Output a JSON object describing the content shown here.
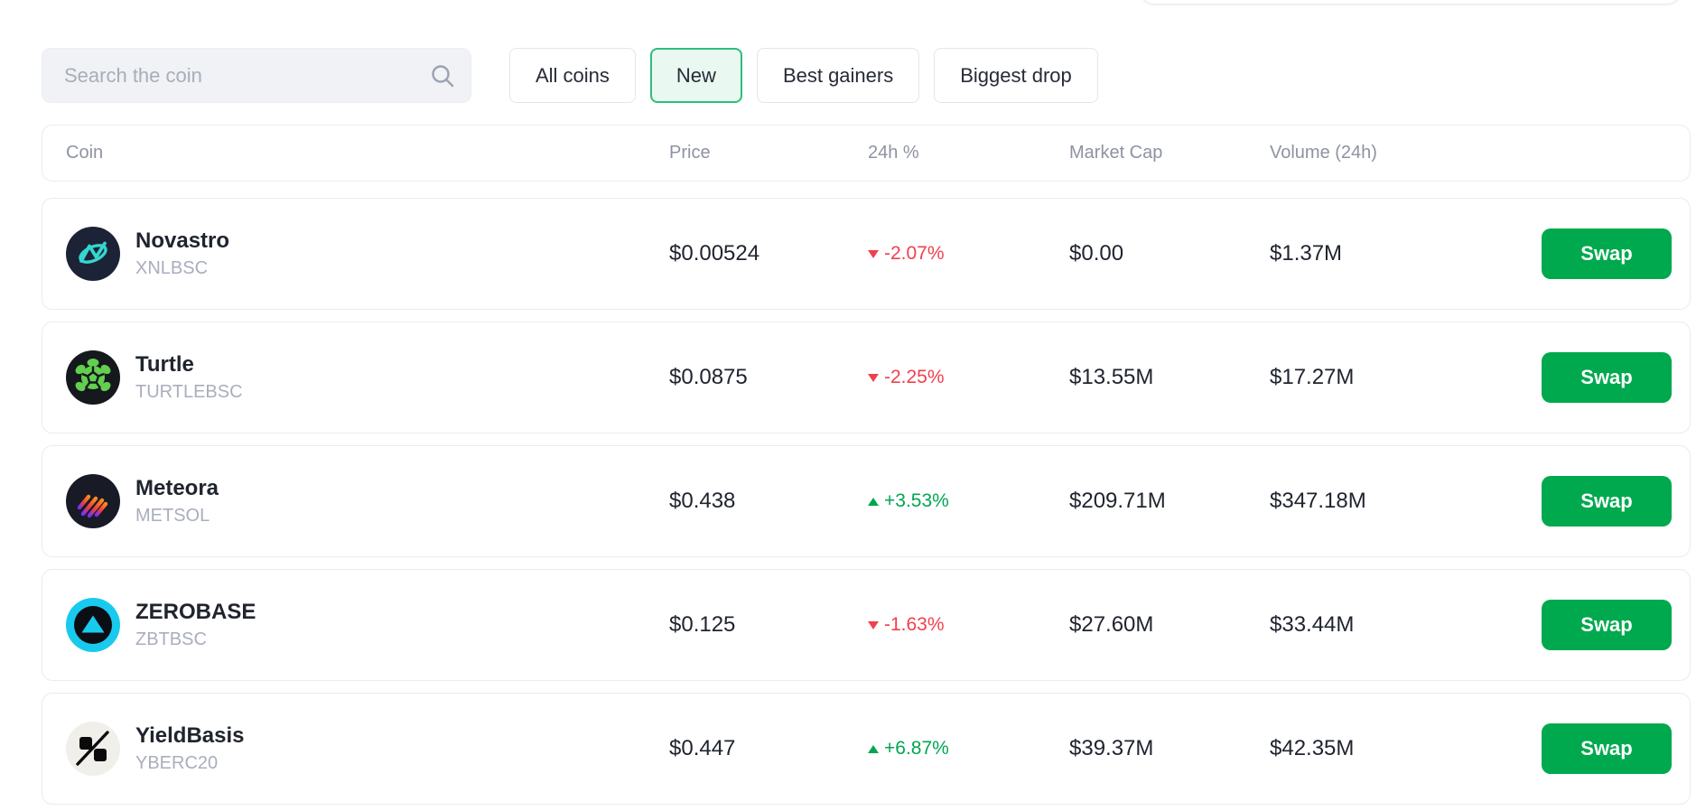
{
  "toolbar": {
    "search": {
      "placeholder": "Search the coin",
      "icon": "search-icon"
    },
    "filters": [
      {
        "label": "All coins",
        "active": false
      },
      {
        "label": "New",
        "active": true
      },
      {
        "label": "Best gainers",
        "active": false
      },
      {
        "label": "Biggest drop",
        "active": false
      }
    ]
  },
  "table": {
    "columns": [
      "Coin",
      "Price",
      "24h %",
      "Market Cap",
      "Volume (24h)"
    ],
    "swap_label": "Swap",
    "rows": [
      {
        "name": "Novastro",
        "symbol": "XNLBSC",
        "price": "$0.00524",
        "change": "-2.07%",
        "direction": "down",
        "market_cap": "$0.00",
        "volume": "$1.37M",
        "icon": "novastro"
      },
      {
        "name": "Turtle",
        "symbol": "TURTLEBSC",
        "price": "$0.0875",
        "change": "-2.25%",
        "direction": "down",
        "market_cap": "$13.55M",
        "volume": "$17.27M",
        "icon": "turtle"
      },
      {
        "name": "Meteora",
        "symbol": "METSOL",
        "price": "$0.438",
        "change": "+3.53%",
        "direction": "up",
        "market_cap": "$209.71M",
        "volume": "$347.18M",
        "icon": "meteora"
      },
      {
        "name": "ZEROBASE",
        "symbol": "ZBTBSC",
        "price": "$0.125",
        "change": "-1.63%",
        "direction": "down",
        "market_cap": "$27.60M",
        "volume": "$33.44M",
        "icon": "zerobase"
      },
      {
        "name": "YieldBasis",
        "symbol": "YBERC20",
        "price": "$0.447",
        "change": "+6.87%",
        "direction": "up",
        "market_cap": "$39.37M",
        "volume": "$42.35M",
        "icon": "yieldbasis"
      }
    ]
  },
  "colors": {
    "negative": "#f0404e",
    "positive": "#00a651",
    "swap_green": "#00a94e",
    "active_chip_bg": "#e9f8f0",
    "active_chip_border": "#2ebd7b"
  }
}
